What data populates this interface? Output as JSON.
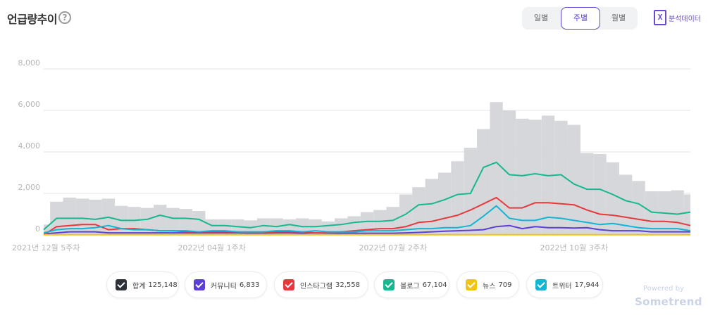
{
  "header": {
    "title": "언급량추이",
    "help_icon": "?"
  },
  "period_tabs": [
    {
      "label": "일별",
      "active": false
    },
    {
      "label": "주별",
      "active": true
    },
    {
      "label": "월별",
      "active": false
    }
  ],
  "export": {
    "icon": "X",
    "label": "분석데이터"
  },
  "branding": {
    "powered": "Powered by",
    "brand": "Sometrend"
  },
  "chart_data": {
    "type": "area",
    "title": "",
    "xlabel": "",
    "ylabel": "",
    "ylim": [
      0,
      8000
    ],
    "y_ticks": [
      0,
      2000,
      4000,
      6000,
      8000
    ],
    "y_tick_labels": [
      "0",
      "2,000",
      "4,000",
      "6,000",
      "8,000"
    ],
    "x_tick_labels": [
      {
        "label": "2021년 12월 5주차",
        "index": 0
      },
      {
        "label": "2022년 04월 1주차",
        "index": 13
      },
      {
        "label": "2022년 07월 2주차",
        "index": 27
      },
      {
        "label": "2022년 10월 3주차",
        "index": 41
      }
    ],
    "grid": true,
    "legend_placement": "bottom",
    "series": [
      {
        "name": "합계",
        "total": "125,148",
        "color": "#2d3138",
        "render": "bars",
        "values": [
          500,
          1600,
          1800,
          1750,
          1700,
          1750,
          1400,
          1350,
          1300,
          1450,
          1300,
          1250,
          1150,
          750,
          750,
          750,
          700,
          800,
          800,
          750,
          800,
          750,
          650,
          800,
          900,
          1100,
          1200,
          1350,
          1950,
          2300,
          2700,
          3000,
          3550,
          4200,
          5100,
          6400,
          6000,
          5600,
          5550,
          5750,
          5500,
          5300,
          3950,
          3900,
          3500,
          2900,
          2600,
          2100,
          2100,
          2150,
          1950
        ]
      },
      {
        "name": "커뮤니티",
        "total": "6,833",
        "color": "#5b3fd6",
        "values": [
          50,
          100,
          150,
          150,
          150,
          100,
          100,
          100,
          100,
          100,
          100,
          100,
          100,
          100,
          100,
          100,
          80,
          80,
          100,
          100,
          80,
          100,
          80,
          80,
          80,
          80,
          80,
          80,
          100,
          120,
          150,
          180,
          200,
          220,
          250,
          400,
          450,
          300,
          400,
          350,
          350,
          330,
          350,
          250,
          200,
          200,
          200,
          150,
          150,
          150,
          150
        ]
      },
      {
        "name": "인스타그램",
        "total": "32,558",
        "color": "#e8383b",
        "values": [
          0,
          400,
          450,
          500,
          500,
          250,
          300,
          300,
          250,
          200,
          200,
          150,
          150,
          150,
          150,
          150,
          100,
          100,
          150,
          150,
          150,
          100,
          100,
          150,
          200,
          250,
          300,
          300,
          400,
          600,
          650,
          800,
          950,
          1200,
          1500,
          1800,
          1300,
          1300,
          1550,
          1550,
          1500,
          1450,
          1200,
          1000,
          950,
          850,
          750,
          650,
          650,
          600,
          450
        ]
      },
      {
        "name": "블로그",
        "total": "67,104",
        "color": "#17b890",
        "values": [
          250,
          800,
          800,
          800,
          750,
          850,
          700,
          700,
          750,
          950,
          800,
          800,
          750,
          450,
          450,
          400,
          350,
          450,
          400,
          500,
          400,
          400,
          450,
          500,
          600,
          650,
          650,
          700,
          1000,
          1450,
          1500,
          1700,
          1950,
          2000,
          3250,
          3500,
          2900,
          2850,
          2950,
          2850,
          2900,
          2450,
          2200,
          2200,
          1950,
          1650,
          1500,
          1100,
          1050,
          1000,
          1100
        ]
      },
      {
        "name": "뉴스",
        "total": "709",
        "color": "#f1c40f",
        "values": [
          10,
          10,
          10,
          10,
          10,
          10,
          10,
          10,
          10,
          10,
          10,
          10,
          10,
          10,
          10,
          10,
          10,
          10,
          10,
          10,
          10,
          10,
          10,
          10,
          10,
          10,
          10,
          10,
          10,
          10,
          10,
          10,
          10,
          10,
          10,
          10,
          10,
          10,
          10,
          10,
          10,
          10,
          10,
          10,
          10,
          10,
          10,
          10,
          10,
          10,
          10
        ]
      },
      {
        "name": "트위터",
        "total": "17,944",
        "color": "#14b4d4",
        "values": [
          100,
          250,
          300,
          300,
          350,
          450,
          300,
          250,
          250,
          200,
          200,
          200,
          150,
          200,
          200,
          150,
          150,
          150,
          200,
          200,
          150,
          200,
          150,
          150,
          150,
          200,
          200,
          200,
          250,
          300,
          300,
          350,
          350,
          450,
          900,
          1400,
          800,
          700,
          700,
          850,
          800,
          700,
          600,
          500,
          550,
          450,
          350,
          300,
          300,
          300,
          200
        ]
      }
    ]
  }
}
